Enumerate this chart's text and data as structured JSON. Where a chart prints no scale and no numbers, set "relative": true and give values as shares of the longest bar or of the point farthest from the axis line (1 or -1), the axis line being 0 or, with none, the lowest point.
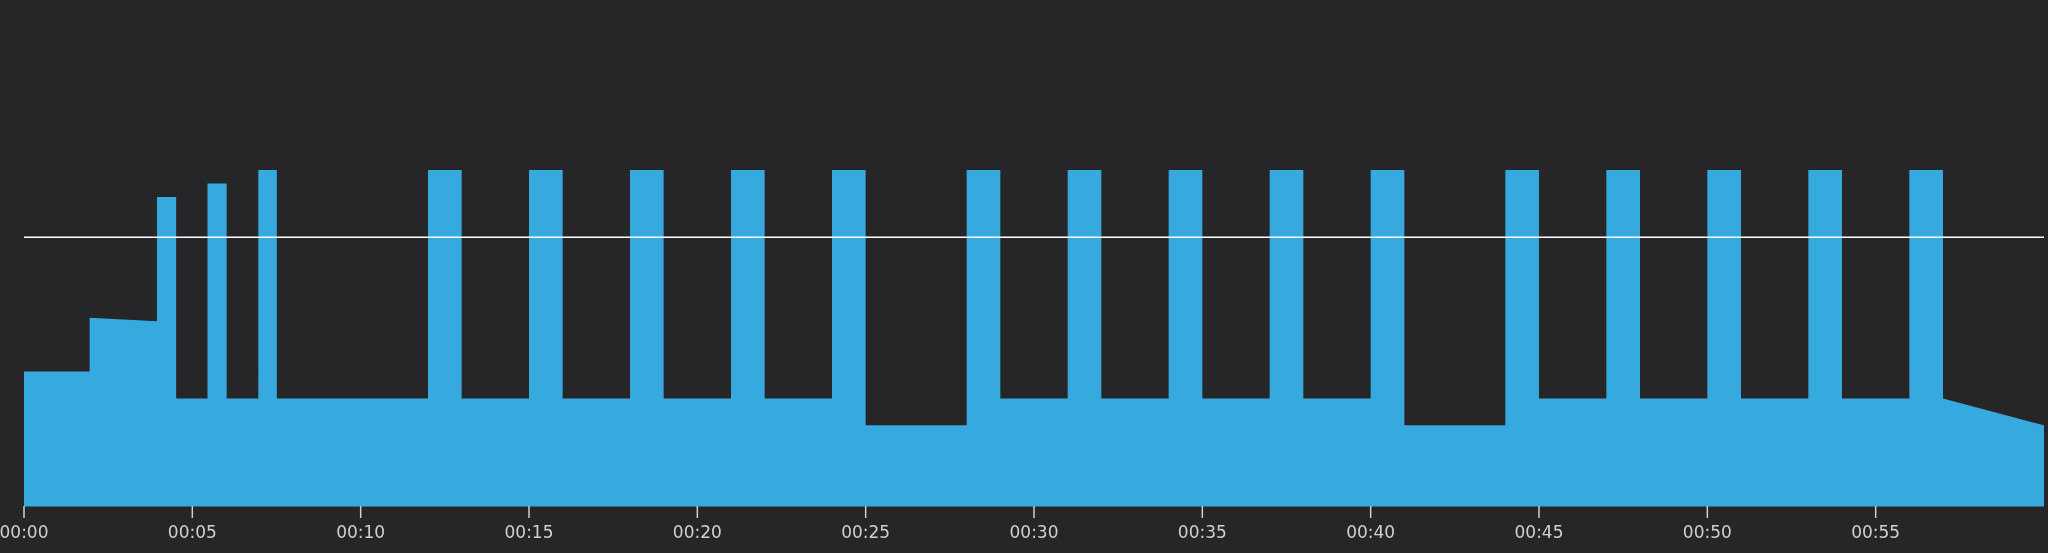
{
  "chart_data": {
    "type": "area",
    "relative": true,
    "xlim": [
      0,
      60
    ],
    "xticks": [
      {
        "value": 0,
        "label": "00:00"
      },
      {
        "value": 5,
        "label": "00:05"
      },
      {
        "value": 10,
        "label": "00:10"
      },
      {
        "value": 15,
        "label": "00:15"
      },
      {
        "value": 20,
        "label": "00:20"
      },
      {
        "value": 25,
        "label": "00:25"
      },
      {
        "value": 30,
        "label": "00:30"
      },
      {
        "value": 35,
        "label": "00:35"
      },
      {
        "value": 40,
        "label": "00:40"
      },
      {
        "value": 45,
        "label": "00:45"
      },
      {
        "value": 50,
        "label": "00:50"
      },
      {
        "value": 55,
        "label": "00:55"
      }
    ],
    "ref_lines": [
      {
        "axis": "y",
        "value": 0.8,
        "color": "#ffffff"
      }
    ],
    "series": [
      {
        "color": "#36a9de",
        "x": [
          0,
          1.95,
          1.95,
          3.95,
          3.95,
          4.52,
          4.52,
          5.45,
          5.45,
          6.02,
          6.02,
          6.96,
          6.96,
          7.51,
          7.51,
          12,
          12,
          13,
          13,
          15,
          15,
          16,
          16,
          18,
          18,
          19,
          19,
          21,
          21,
          22,
          22,
          24,
          24,
          25,
          25,
          28,
          28,
          29,
          29,
          31,
          31,
          32,
          32,
          34,
          34,
          35,
          35,
          37,
          37,
          38,
          38,
          40,
          40,
          41,
          41,
          44,
          44,
          45,
          45,
          47,
          47,
          48,
          48,
          50,
          50,
          51,
          51,
          53,
          53,
          54,
          54,
          56,
          56,
          57,
          57,
          60
        ],
        "values": [
          0.4,
          0.4,
          0.56,
          0.55,
          0.92,
          0.92,
          0.32,
          0.32,
          0.96,
          0.96,
          0.32,
          0.32,
          1,
          1,
          0.32,
          0.32,
          1,
          1,
          0.32,
          0.32,
          1,
          1,
          0.32,
          0.32,
          1,
          1,
          0.32,
          0.32,
          1,
          1,
          0.32,
          0.32,
          1,
          1,
          0.24,
          0.24,
          1,
          1,
          0.32,
          0.32,
          1,
          1,
          0.32,
          0.32,
          1,
          1,
          0.32,
          0.32,
          1,
          1,
          0.32,
          0.32,
          1,
          1,
          0.24,
          0.24,
          1,
          1,
          0.32,
          0.32,
          1,
          1,
          0.32,
          0.32,
          1,
          1,
          0.32,
          0.32,
          1,
          1,
          0.32,
          0.32,
          1,
          1,
          0.32,
          0.24
        ]
      }
    ]
  }
}
